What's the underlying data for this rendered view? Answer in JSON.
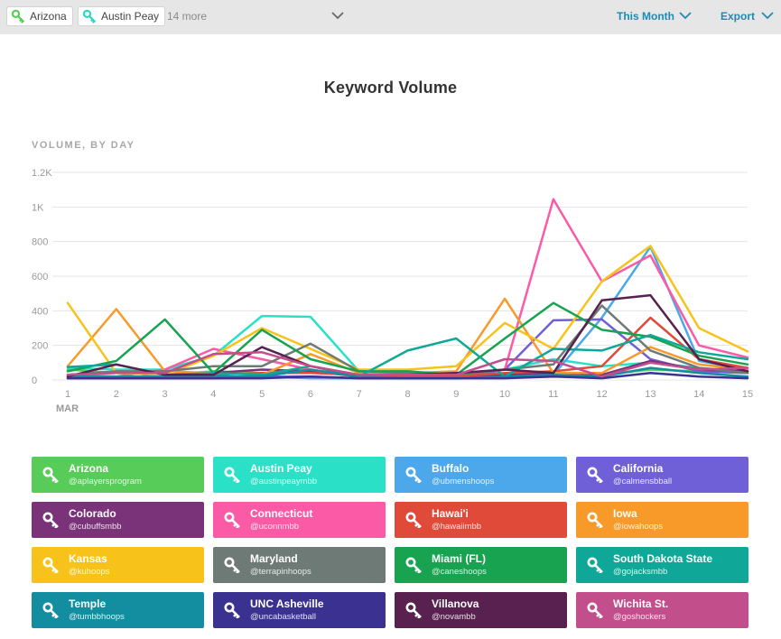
{
  "toolbar": {
    "chips": [
      {
        "label": "Arizona",
        "color": "#4fcf4f"
      },
      {
        "label": "Austin Peay",
        "color": "#28d7c1"
      }
    ],
    "more_label": "14 more",
    "range_label": "This Month",
    "export_label": "Export"
  },
  "title": "Keyword Volume",
  "chart_data": {
    "type": "line",
    "ylabel": "VOLUME, BY DAY",
    "ylim": [
      0,
      1200
    ],
    "yticks": [
      0,
      200,
      400,
      600,
      800,
      1000,
      1200
    ],
    "ytick_labels": [
      "0",
      "200",
      "400",
      "600",
      "800",
      "1K",
      "1.2K"
    ],
    "x": [
      1,
      2,
      3,
      4,
      5,
      6,
      7,
      8,
      9,
      10,
      11,
      12,
      13,
      14,
      15
    ],
    "xtick_labels": [
      "1",
      "2",
      "3",
      "4",
      "5",
      "6",
      "7",
      "8",
      "9",
      "10",
      "11",
      "12",
      "13",
      "14",
      "15"
    ],
    "x_month_label": "MAR",
    "grid": true,
    "series": [
      {
        "name": "Arizona",
        "handle": "@aplayersprogram",
        "color": "#57cc58",
        "values": [
          60,
          40,
          30,
          50,
          40,
          60,
          20,
          30,
          20,
          30,
          40,
          30,
          60,
          50,
          40
        ]
      },
      {
        "name": "Austin Peay",
        "handle": "@austinpeaymbb",
        "color": "#2ae0c6",
        "values": [
          70,
          60,
          60,
          140,
          370,
          365,
          50,
          40,
          30,
          60,
          120,
          80,
          100,
          70,
          50
        ]
      },
      {
        "name": "Buffalo",
        "handle": "@ubmenshoops",
        "color": "#4ca8ea",
        "values": [
          20,
          20,
          10,
          20,
          20,
          10,
          10,
          20,
          10,
          20,
          30,
          360,
          770,
          110,
          60
        ]
      },
      {
        "name": "California",
        "handle": "@calmensbball",
        "color": "#7060d8",
        "values": [
          10,
          10,
          10,
          10,
          20,
          20,
          10,
          10,
          10,
          60,
          345,
          350,
          120,
          50,
          40
        ]
      },
      {
        "name": "Colorado",
        "handle": "@cubuffsmbb",
        "color": "#7a3278",
        "values": [
          20,
          10,
          30,
          40,
          60,
          50,
          20,
          20,
          20,
          30,
          40,
          30,
          110,
          60,
          50
        ]
      },
      {
        "name": "Connecticut",
        "handle": "@uconnmbb",
        "color": "#fa5aa6",
        "values": [
          30,
          20,
          60,
          180,
          120,
          60,
          20,
          20,
          30,
          60,
          1045,
          570,
          720,
          200,
          130
        ]
      },
      {
        "name": "Hawai'i",
        "handle": "@hawaiimbb",
        "color": "#e04a39",
        "values": [
          20,
          20,
          20,
          30,
          40,
          40,
          30,
          20,
          20,
          40,
          50,
          80,
          360,
          120,
          70
        ]
      },
      {
        "name": "Iowa",
        "handle": "@iowahoops",
        "color": "#f89a2a",
        "values": [
          80,
          410,
          50,
          40,
          30,
          150,
          40,
          40,
          50,
          470,
          40,
          40,
          190,
          90,
          60
        ]
      },
      {
        "name": "Kansas",
        "handle": "@kuhoops",
        "color": "#f7c31a",
        "values": [
          445,
          40,
          30,
          140,
          300,
          180,
          60,
          60,
          80,
          330,
          180,
          570,
          775,
          300,
          165
        ]
      },
      {
        "name": "Maryland",
        "handle": "@terrapinhoops",
        "color": "#6e7a76",
        "values": [
          30,
          50,
          50,
          80,
          80,
          210,
          50,
          40,
          30,
          60,
          90,
          430,
          170,
          70,
          40
        ]
      },
      {
        "name": "Miami (FL)",
        "handle": "@caneshoops",
        "color": "#17a350",
        "values": [
          50,
          110,
          350,
          40,
          290,
          120,
          50,
          50,
          30,
          240,
          445,
          290,
          250,
          140,
          90
        ]
      },
      {
        "name": "South Dakota State",
        "handle": "@gojacksmbb",
        "color": "#0fa898",
        "values": [
          75,
          90,
          30,
          40,
          30,
          80,
          20,
          170,
          240,
          20,
          180,
          170,
          260,
          160,
          120
        ]
      },
      {
        "name": "Temple",
        "handle": "@tumbbhoops",
        "color": "#138da0",
        "values": [
          20,
          20,
          20,
          20,
          20,
          60,
          20,
          10,
          10,
          20,
          30,
          20,
          70,
          40,
          20
        ]
      },
      {
        "name": "UNC Asheville",
        "handle": "@uncabasketball",
        "color": "#3b3190",
        "values": [
          10,
          10,
          10,
          10,
          10,
          20,
          10,
          10,
          10,
          10,
          20,
          10,
          40,
          20,
          10
        ]
      },
      {
        "name": "Villanova",
        "handle": "@novambb",
        "color": "#58214f",
        "values": [
          20,
          90,
          30,
          30,
          190,
          80,
          30,
          30,
          40,
          60,
          40,
          460,
          490,
          120,
          50
        ]
      },
      {
        "name": "Wichita St.",
        "handle": "@goshockers",
        "color": "#c24f8c",
        "values": [
          30,
          40,
          40,
          150,
          160,
          80,
          30,
          30,
          30,
          120,
          110,
          20,
          100,
          60,
          70
        ]
      }
    ]
  }
}
